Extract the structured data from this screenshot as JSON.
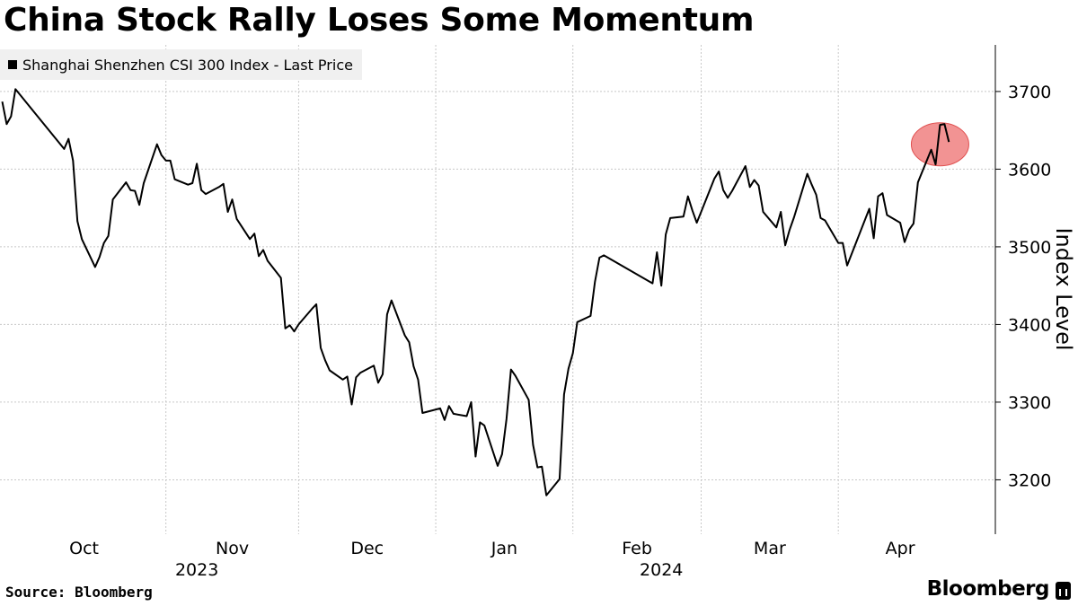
{
  "header": {
    "title": "China Stock Rally Loses Some Momentum"
  },
  "legend": {
    "label": "Shanghai Shenzhen CSI 300 Index - Last Price",
    "swatch_color": "#000000"
  },
  "footer": {
    "source": "Source: Bloomberg",
    "brand": "Bloomberg"
  },
  "chart_data": {
    "type": "line",
    "title": "China Stock Rally Loses Some Momentum",
    "ylabel": "Index Level",
    "xlabel": "",
    "x_range": [
      "2023-09-25",
      "2024-04-29"
    ],
    "ylim": [
      3130,
      3760
    ],
    "y_ticks": [
      3200,
      3300,
      3400,
      3500,
      3600,
      3700
    ],
    "x_ticks": [
      {
        "label": "Oct",
        "date": "2023-10-01"
      },
      {
        "label": "Nov",
        "date": "2023-11-01"
      },
      {
        "label": "Dec",
        "date": "2023-12-01"
      },
      {
        "label": "Jan",
        "date": "2024-01-01"
      },
      {
        "label": "Feb",
        "date": "2024-02-01"
      },
      {
        "label": "Mar",
        "date": "2024-03-01"
      },
      {
        "label": "Apr",
        "date": "2024-04-01"
      }
    ],
    "year_labels": [
      {
        "label": "2023",
        "date": "2023-11-08"
      },
      {
        "label": "2024",
        "date": "2024-02-21"
      }
    ],
    "grid": true,
    "legend_position": "top-left",
    "line_color": "#000000",
    "highlight": {
      "from": "2024-04-22",
      "to": "2024-04-24",
      "color": "#f08080"
    },
    "series": [
      {
        "name": "Shanghai Shenzhen CSI 300 Index - Last Price",
        "points": [
          [
            "2023-09-25",
            3687
          ],
          [
            "2023-09-26",
            3658
          ],
          [
            "2023-09-27",
            3668
          ],
          [
            "2023-09-28",
            3703
          ],
          [
            "2023-10-09",
            3626
          ],
          [
            "2023-10-10",
            3639
          ],
          [
            "2023-10-11",
            3611
          ],
          [
            "2023-10-12",
            3533
          ],
          [
            "2023-10-13",
            3510
          ],
          [
            "2023-10-16",
            3474
          ],
          [
            "2023-10-17",
            3487
          ],
          [
            "2023-10-18",
            3505
          ],
          [
            "2023-10-19",
            3514
          ],
          [
            "2023-10-20",
            3561
          ],
          [
            "2023-10-23",
            3583
          ],
          [
            "2023-10-24",
            3573
          ],
          [
            "2023-10-25",
            3572
          ],
          [
            "2023-10-26",
            3554
          ],
          [
            "2023-10-27",
            3582
          ],
          [
            "2023-10-30",
            3632
          ],
          [
            "2023-10-31",
            3618
          ],
          [
            "2023-11-01",
            3611
          ],
          [
            "2023-11-02",
            3611
          ],
          [
            "2023-11-03",
            3587
          ],
          [
            "2023-11-06",
            3580
          ],
          [
            "2023-11-07",
            3582
          ],
          [
            "2023-11-08",
            3607
          ],
          [
            "2023-11-09",
            3573
          ],
          [
            "2023-11-10",
            3568
          ],
          [
            "2023-11-13",
            3577
          ],
          [
            "2023-11-14",
            3581
          ],
          [
            "2023-11-15",
            3545
          ],
          [
            "2023-11-16",
            3561
          ],
          [
            "2023-11-17",
            3536
          ],
          [
            "2023-11-20",
            3510
          ],
          [
            "2023-11-21",
            3517
          ],
          [
            "2023-11-22",
            3488
          ],
          [
            "2023-11-23",
            3496
          ],
          [
            "2023-11-24",
            3482
          ],
          [
            "2023-11-27",
            3460
          ],
          [
            "2023-11-28",
            3395
          ],
          [
            "2023-11-29",
            3399
          ],
          [
            "2023-11-30",
            3391
          ],
          [
            "2023-12-01",
            3400
          ],
          [
            "2023-12-04",
            3420
          ],
          [
            "2023-12-05",
            3426
          ],
          [
            "2023-12-06",
            3370
          ],
          [
            "2023-12-07",
            3354
          ],
          [
            "2023-12-08",
            3341
          ],
          [
            "2023-12-11",
            3329
          ],
          [
            "2023-12-12",
            3333
          ],
          [
            "2023-12-13",
            3297
          ],
          [
            "2023-12-14",
            3332
          ],
          [
            "2023-12-15",
            3338
          ],
          [
            "2023-12-18",
            3347
          ],
          [
            "2023-12-19",
            3325
          ],
          [
            "2023-12-20",
            3336
          ],
          [
            "2023-12-21",
            3413
          ],
          [
            "2023-12-22",
            3431
          ],
          [
            "2023-12-25",
            3386
          ],
          [
            "2023-12-26",
            3377
          ],
          [
            "2023-12-27",
            3346
          ],
          [
            "2023-12-28",
            3329
          ],
          [
            "2023-12-29",
            3286
          ],
          [
            "2024-01-02",
            3292
          ],
          [
            "2024-01-03",
            3277
          ],
          [
            "2024-01-04",
            3295
          ],
          [
            "2024-01-05",
            3285
          ],
          [
            "2024-01-08",
            3282
          ],
          [
            "2024-01-09",
            3300
          ],
          [
            "2024-01-10",
            3230
          ],
          [
            "2024-01-11",
            3274
          ],
          [
            "2024-01-12",
            3270
          ],
          [
            "2024-01-15",
            3218
          ],
          [
            "2024-01-16",
            3233
          ],
          [
            "2024-01-17",
            3278
          ],
          [
            "2024-01-18",
            3342
          ],
          [
            "2024-01-19",
            3334
          ],
          [
            "2024-01-22",
            3303
          ],
          [
            "2024-01-23",
            3245
          ],
          [
            "2024-01-24",
            3216
          ],
          [
            "2024-01-25",
            3217
          ],
          [
            "2024-01-26",
            3180
          ],
          [
            "2024-01-29",
            3201
          ],
          [
            "2024-01-30",
            3310
          ],
          [
            "2024-01-31",
            3343
          ],
          [
            "2024-02-01",
            3363
          ],
          [
            "2024-02-02",
            3403
          ],
          [
            "2024-02-05",
            3411
          ],
          [
            "2024-02-06",
            3455
          ],
          [
            "2024-02-07",
            3486
          ],
          [
            "2024-02-08",
            3489
          ],
          [
            "2024-02-19",
            3453
          ],
          [
            "2024-02-20",
            3493
          ],
          [
            "2024-02-21",
            3450
          ],
          [
            "2024-02-22",
            3516
          ],
          [
            "2024-02-23",
            3537
          ],
          [
            "2024-02-26",
            3539
          ],
          [
            "2024-02-27",
            3565
          ],
          [
            "2024-02-28",
            3547
          ],
          [
            "2024-02-29",
            3531
          ],
          [
            "2024-03-01",
            3545
          ],
          [
            "2024-03-04",
            3588
          ],
          [
            "2024-03-05",
            3597
          ],
          [
            "2024-03-06",
            3573
          ],
          [
            "2024-03-07",
            3563
          ],
          [
            "2024-03-08",
            3572
          ],
          [
            "2024-03-11",
            3604
          ],
          [
            "2024-03-12",
            3577
          ],
          [
            "2024-03-13",
            3586
          ],
          [
            "2024-03-14",
            3579
          ],
          [
            "2024-03-15",
            3545
          ],
          [
            "2024-03-18",
            3525
          ],
          [
            "2024-03-19",
            3545
          ],
          [
            "2024-03-20",
            3502
          ],
          [
            "2024-03-21",
            3522
          ],
          [
            "2024-03-22",
            3538
          ],
          [
            "2024-03-25",
            3594
          ],
          [
            "2024-03-26",
            3580
          ],
          [
            "2024-03-27",
            3567
          ],
          [
            "2024-03-28",
            3537
          ],
          [
            "2024-03-29",
            3534
          ],
          [
            "2024-04-01",
            3505
          ],
          [
            "2024-04-02",
            3505
          ],
          [
            "2024-04-03",
            3476
          ],
          [
            "2024-04-08",
            3549
          ],
          [
            "2024-04-09",
            3511
          ],
          [
            "2024-04-10",
            3565
          ],
          [
            "2024-04-11",
            3569
          ],
          [
            "2024-04-12",
            3541
          ],
          [
            "2024-04-15",
            3531
          ],
          [
            "2024-04-16",
            3506
          ],
          [
            "2024-04-17",
            3522
          ],
          [
            "2024-04-18",
            3530
          ],
          [
            "2024-04-19",
            3583
          ],
          [
            "2024-04-22",
            3625
          ],
          [
            "2024-04-23",
            3606
          ],
          [
            "2024-04-24",
            3657
          ],
          [
            "2024-04-25",
            3658
          ],
          [
            "2024-04-26",
            3635
          ]
        ]
      }
    ]
  }
}
